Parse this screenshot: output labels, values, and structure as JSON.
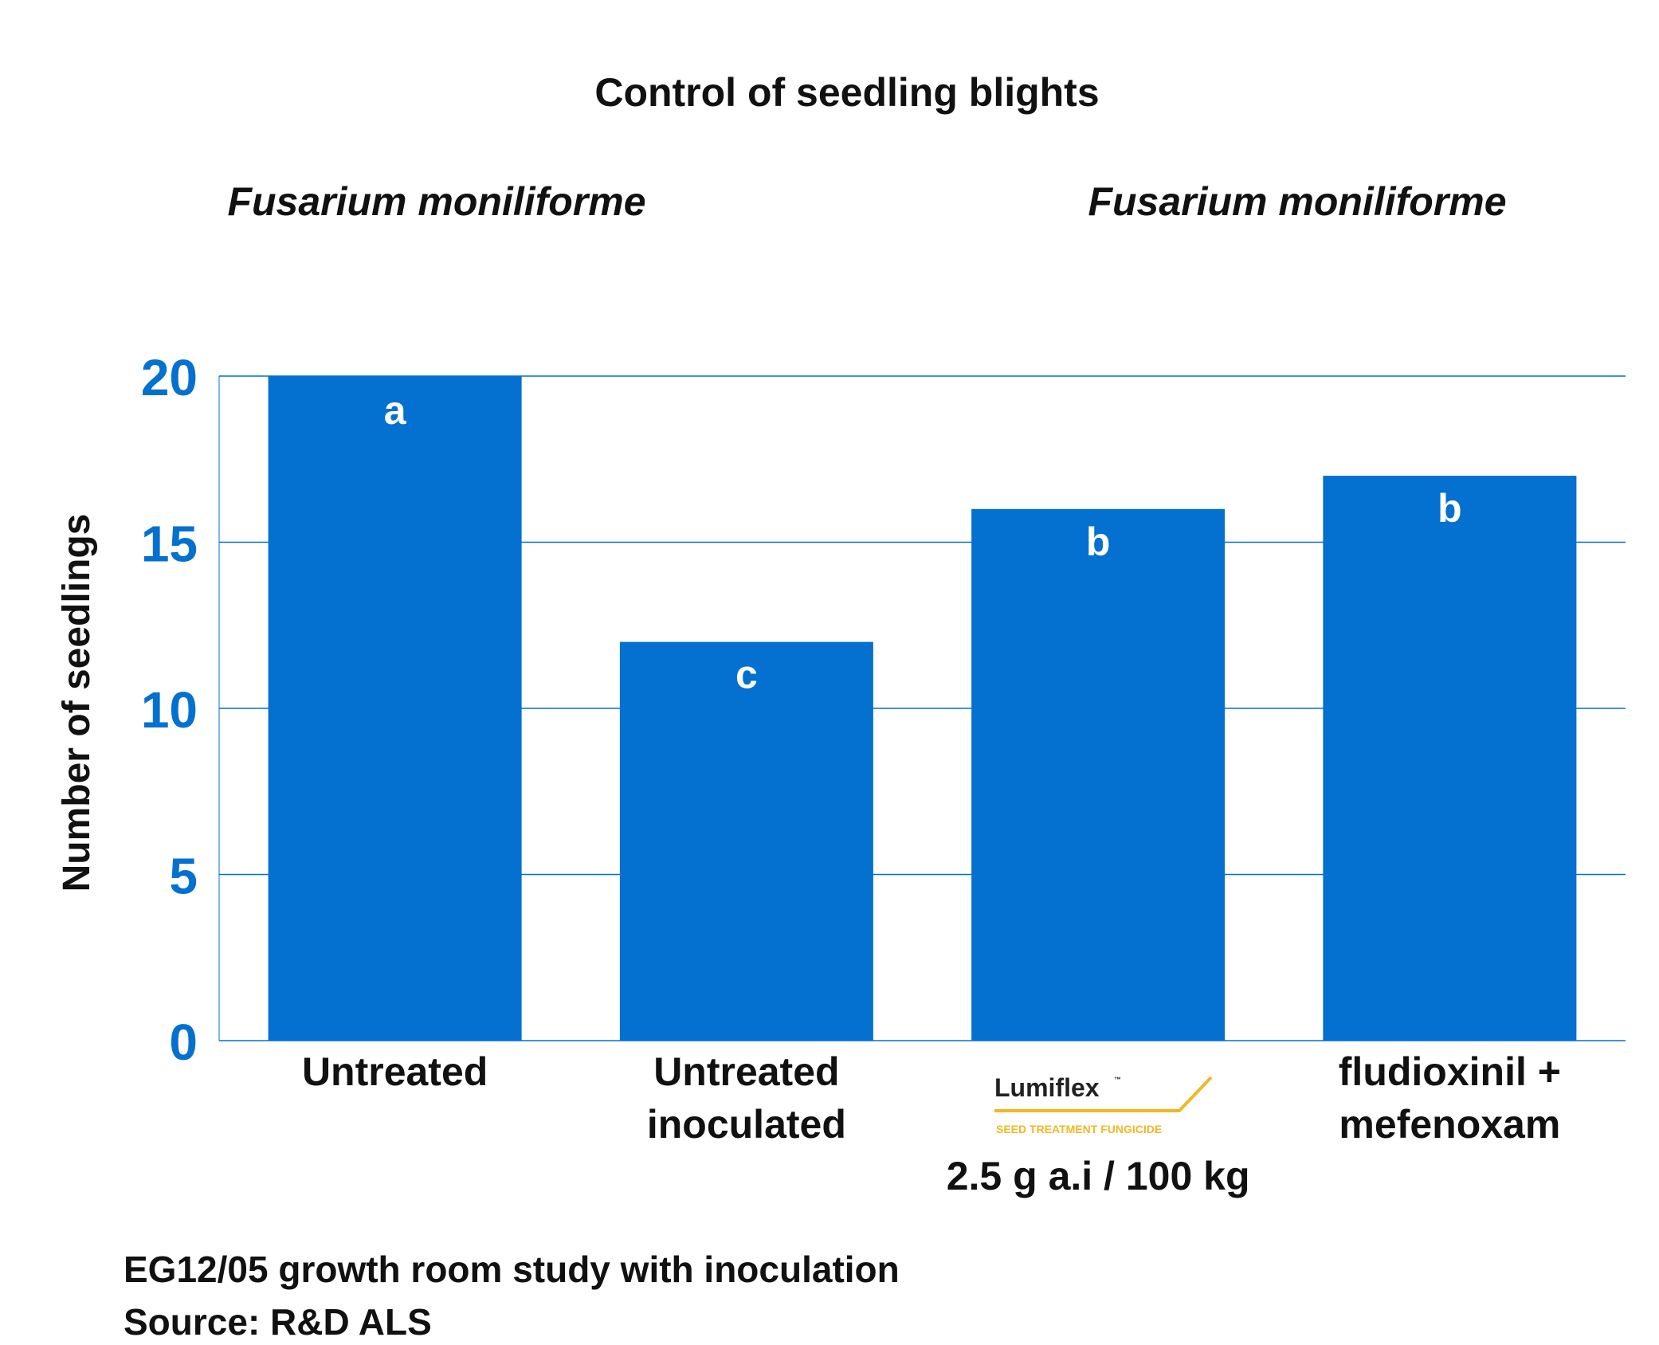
{
  "chart_data": {
    "type": "bar",
    "title": "Control of seedling blights",
    "subtitles": [
      "Fusarium moniliforme",
      "Fusarium moniliforme"
    ],
    "ylabel": "Number of seedlings",
    "ylim": [
      0,
      20
    ],
    "yticks": [
      0,
      5,
      10,
      15,
      20
    ],
    "grid": true,
    "categories": [
      {
        "lines": [
          "Untreated"
        ]
      },
      {
        "lines": [
          "Untreated",
          "inoculated"
        ]
      },
      {
        "lines": [
          "2.5 g a.i / 100 kg"
        ],
        "logo": {
          "name": "Lumiflex",
          "mark": "™",
          "tagline": "SEED TREATMENT FUNGICIDE"
        }
      },
      {
        "lines": [
          "fludioxinil +",
          "mefenoxam"
        ]
      }
    ],
    "values": [
      20,
      12,
      16,
      17
    ],
    "significance_letters": [
      "a",
      "c",
      "b",
      "b"
    ],
    "colors": {
      "bar": "#0470cf",
      "grid": "#0470cf",
      "tick": "#0470cf",
      "logo_accent": "#f2b824"
    }
  },
  "footer": {
    "line1": "EG12/05 growth room study with inoculation",
    "line2": "Source: R&D ALS"
  }
}
